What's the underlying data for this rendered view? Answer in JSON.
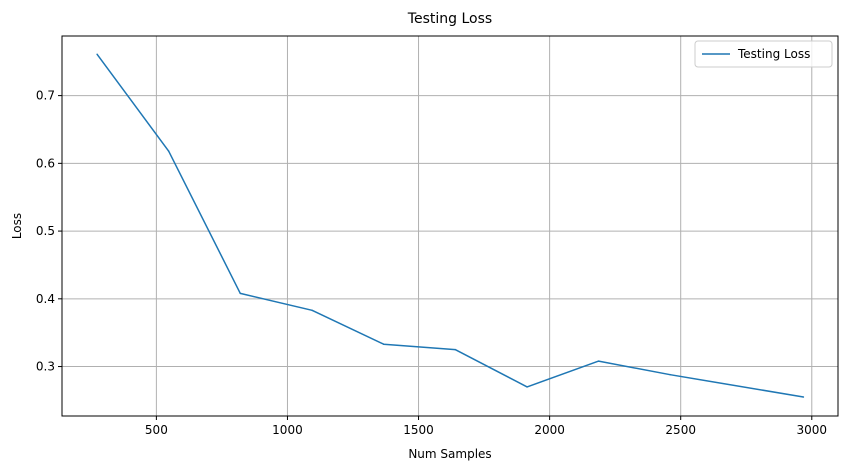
{
  "chart_data": {
    "type": "line",
    "title": "Testing Loss",
    "xlabel": "Num Samples",
    "ylabel": "Loss",
    "xlim": [
      140,
      3100
    ],
    "ylim": [
      0.227,
      0.788
    ],
    "x_ticks": [
      500,
      1000,
      1500,
      2000,
      2500,
      3000
    ],
    "y_ticks": [
      0.3,
      0.4,
      0.5,
      0.6,
      0.7
    ],
    "x_tick_labels": [
      "500",
      "1000",
      "1500",
      "2000",
      "2500",
      "3000"
    ],
    "y_tick_labels": [
      "0.3",
      "0.4",
      "0.5",
      "0.6",
      "0.7"
    ],
    "grid": true,
    "legend": {
      "position": "top-right",
      "entries": [
        "Testing Loss"
      ]
    },
    "series": [
      {
        "name": "Testing Loss",
        "color": "#1f77b4",
        "x": [
          274,
          547,
          820,
          1094,
          1367,
          1640,
          1914,
          2187,
          2460,
          2968
        ],
        "y": [
          0.761,
          0.618,
          0.408,
          0.383,
          0.333,
          0.325,
          0.27,
          0.308,
          0.288,
          0.255
        ]
      }
    ]
  }
}
